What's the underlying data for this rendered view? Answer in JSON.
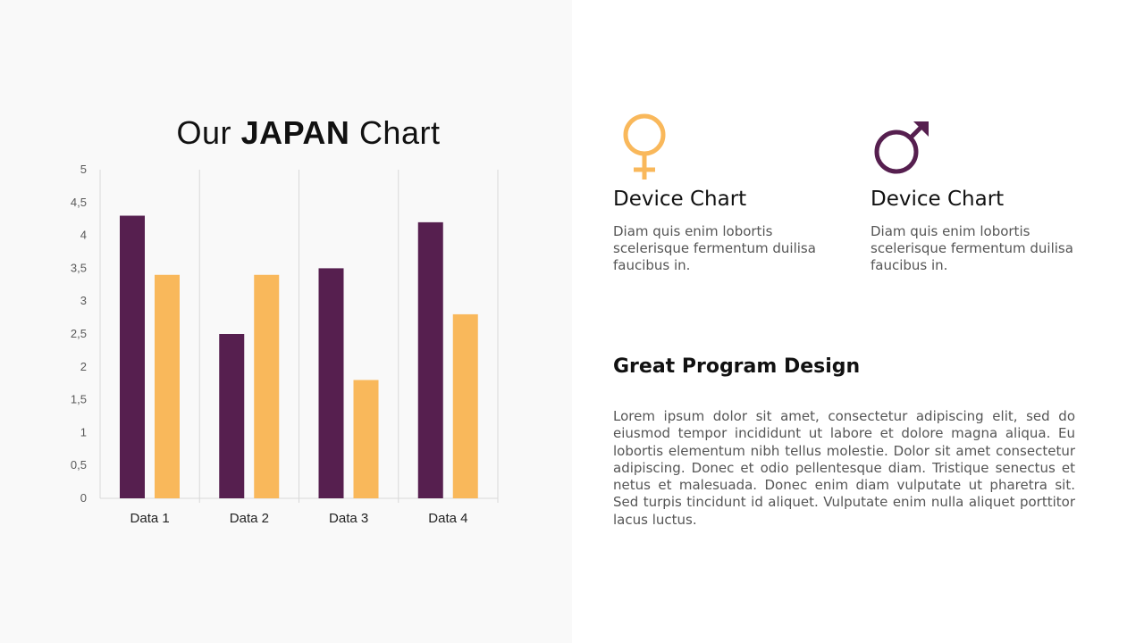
{
  "title": {
    "prefix": "Our",
    "bold": "JAPAN",
    "suffix": "Chart"
  },
  "colors": {
    "series1": "#561F4F",
    "series2": "#F9B85B",
    "background_left": "#F9F9F9"
  },
  "chart_data": {
    "type": "bar",
    "categories": [
      "Data 1",
      "Data 2",
      "Data 3",
      "Data 4"
    ],
    "series": [
      {
        "values": [
          4.3,
          2.5,
          3.5,
          4.2
        ],
        "color": "#561F4F"
      },
      {
        "values": [
          3.4,
          3.4,
          1.8,
          2.8
        ],
        "color": "#F9B85B"
      }
    ],
    "ylim": [
      0,
      5
    ],
    "yticks": [
      "0",
      "0,5",
      "1",
      "1,5",
      "2",
      "2,5",
      "3",
      "3,5",
      "4",
      "4,5",
      "5"
    ],
    "grid": "vertical category separators",
    "legend": "none"
  },
  "cards": [
    {
      "icon": "female-symbol-icon",
      "heading": "Device Chart",
      "text": "Diam quis enim lobortis scelerisque fermentum duilisa faucibus in."
    },
    {
      "icon": "male-symbol-icon",
      "heading": "Device Chart",
      "text": "Diam quis enim lobortis scelerisque fermentum duilisa faucibus in."
    }
  ],
  "section": {
    "heading": "Great Program Design",
    "body": "Lorem ipsum dolor sit amet, consectetur adipiscing elit, sed do eiusmod tempor incididunt ut labore et dolore magna aliqua. Eu lobortis elementum nibh tellus molestie. Dolor sit amet consectetur adipiscing. Donec et odio pellentesque diam. Tristique senectus et netus et malesuada. Donec enim diam vulputate ut pharetra sit. Sed turpis tincidunt id aliquet. Vulputate enim nulla aliquet porttitor lacus luctus."
  }
}
